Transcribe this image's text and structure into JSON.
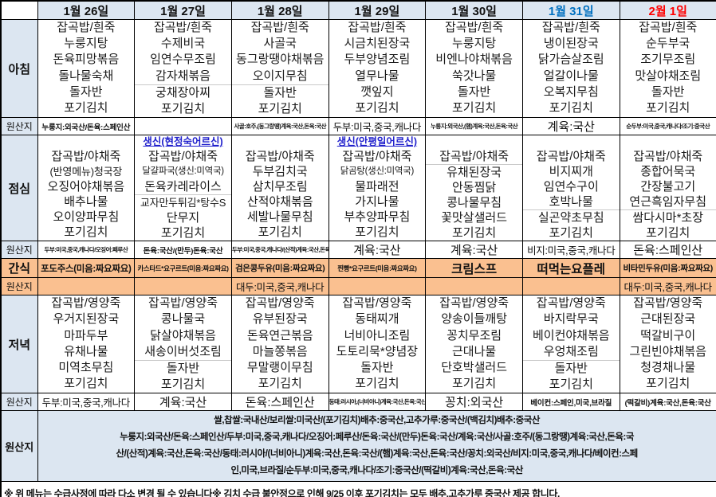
{
  "labels": {
    "breakfast": "아침",
    "lunch": "점심",
    "snack": "간식",
    "dinner": "저녁",
    "origin": "원산지"
  },
  "colors": {
    "header_bg": "#dce6f1",
    "snack_bg": "#fac090",
    "saturday": "#0070c0",
    "sunday": "#ff0000",
    "birthday": "#2020cc"
  },
  "dates": [
    {
      "label": "1월 26일",
      "color": "#101010"
    },
    {
      "label": "1월 27일",
      "color": "#101010"
    },
    {
      "label": "1월 28일",
      "color": "#101010"
    },
    {
      "label": "1월 29일",
      "color": "#101010"
    },
    {
      "label": "1월 30일",
      "color": "#101010"
    },
    {
      "label": "1월 31일",
      "color": "#0070c0"
    },
    {
      "label": "2월 1일",
      "color": "#ff0000"
    }
  ],
  "breakfast": {
    "columns": [
      {
        "items": [
          "잡곡밥/흰죽",
          "누룽지탕",
          "돈육피망볶음",
          "돌나물숙채",
          "돌자반",
          "포기김치"
        ],
        "divider_before": null,
        "origin": "누룽지:외국산/돈육:스페인산",
        "origin_size": "sm"
      },
      {
        "items": [
          "잡곡밥/흰죽",
          "수제비국",
          "임연수무조림",
          "감자채볶음",
          "궁채장아찌",
          "포기김치"
        ],
        "divider_before": 4,
        "origin": "",
        "origin_size": "md"
      },
      {
        "items": [
          "잡곡밥/흰죽",
          "사골국",
          "동그랑땡야채볶음",
          "오이지무침",
          "돌자반",
          "포기김치"
        ],
        "divider_before": 4,
        "origin": "사골:호주,(동그랑땡)계육:국산,돈육:국산",
        "origin_size": "xs"
      },
      {
        "items": [
          "잡곡밥/흰죽",
          "시금치된장국",
          "두부양념조림",
          "열무나물",
          "깻잎지",
          "포기김치"
        ],
        "divider_before": null,
        "origin": "두부:미국,중국,캐나다",
        "origin_size": "md"
      },
      {
        "items": [
          "잡곡밥/흰죽",
          "누룽지탕",
          "비엔나야채볶음",
          "쑥갓나물",
          "돌자반",
          "포기김치"
        ],
        "divider_before": null,
        "origin": "누룽지:외국산,(햄)계육:국산,돈육:국산",
        "origin_size": "xs"
      },
      {
        "items": [
          "잡곡밥/흰죽",
          "냉이된장국",
          "닭가슴살조림",
          "얼갈이나물",
          "오복지무침",
          "포기김치"
        ],
        "divider_before": null,
        "origin": "계육:국산",
        "origin_size": "lg"
      },
      {
        "items": [
          "잡곡밥/흰죽",
          "순두부국",
          "조기무조림",
          "맛살야채조림",
          "돌자반",
          "포기김치"
        ],
        "divider_before": null,
        "origin": "순두부:미국,중국,캐나다/조기:중국산",
        "origin_size": "xs"
      }
    ]
  },
  "lunch": {
    "columns": [
      {
        "special": "",
        "items": [
          "잡곡밥/야채죽",
          "(반영메뉴)청국장",
          "오징어야채볶음",
          "배추나물",
          "오이양파무침",
          "포기김치"
        ],
        "divider_before": null,
        "origin": "두부:미국,중국,캐나다/오징어:페루산",
        "origin_size": "xs"
      },
      {
        "special": "생신(현정숙어르신)",
        "items": [
          "잡곡밥/야채죽",
          "달걀파국(생신:미역국)",
          "돈육카레라이스",
          "교자만두튀김*탕수S",
          "단무지",
          "포기김치"
        ],
        "divider_before": 3,
        "origin": "돈육:국산/(만두)돈육:국산",
        "origin_size": "sm"
      },
      {
        "special": "",
        "items": [
          "잡곡밥/야채죽",
          "두부김치국",
          "삼치무조림",
          "산적야채볶음",
          "세발나물무침",
          "포기김치"
        ],
        "divider_before": null,
        "origin": "두부:미국,중국,캐나다/(산적)계육:국산,돈육:국산",
        "origin_size": "xs"
      },
      {
        "special": "생신(안평일어르신)",
        "items": [
          "잡곡밥/야채죽",
          "닭곰탕(생신:미역국)",
          "물파래전",
          "가지나물",
          "부추양파무침",
          "포기김치"
        ],
        "divider_before": null,
        "origin": "계육:국산",
        "origin_size": "lg"
      },
      {
        "special": "",
        "items": [
          "잡곡밥/야채죽",
          "유채된장국",
          "안동찜닭",
          "콩나물무침",
          "꽃맛살샐러드",
          "포기김치"
        ],
        "divider_before": 1,
        "origin": "계육:국산",
        "origin_size": "lg"
      },
      {
        "special": "",
        "items": [
          "잡곡밥/야채죽",
          "비지찌개",
          "임연수구이",
          "호박나물",
          "실곤약초무침",
          "포기김치"
        ],
        "divider_before": 4,
        "origin": "비지:미국,중국,캐나다",
        "origin_size": "md"
      },
      {
        "special": "",
        "items": [
          "잡곡밥/야채죽",
          "종합어묵국",
          "간장불고기",
          "연근흑임자무침",
          "쌈다시마*초장",
          "포기김치"
        ],
        "divider_before": 4,
        "origin": "돈육:스페인산",
        "origin_size": "lg"
      }
    ]
  },
  "snack": {
    "columns": [
      {
        "text": "포도주스(미음:짜요짜요)",
        "size": "md",
        "origin": "",
        "origin_size": "md"
      },
      {
        "text": "카스타드*요구르트(미음:짜요짜요)",
        "size": "xs",
        "origin": "",
        "origin_size": "md"
      },
      {
        "text": "검은콩두유(미음:짜요짜요)",
        "size": "sm",
        "origin": "대두:미국,중국,캐나다",
        "origin_size": "md"
      },
      {
        "text": "찐빵*요구르트(미음:짜요짜요)",
        "size": "xs",
        "origin": "",
        "origin_size": "md"
      },
      {
        "text": "크림스프",
        "size": "lg",
        "origin": "",
        "origin_size": "md"
      },
      {
        "text": "떠먹는요플레",
        "size": "lg",
        "origin": "",
        "origin_size": "md"
      },
      {
        "text": "비타민두유(미음:짜요짜요)",
        "size": "sm",
        "origin": "대두:미국,중국,캐나다",
        "origin_size": "md"
      }
    ]
  },
  "dinner": {
    "columns": [
      {
        "items": [
          "잡곡밥/영양죽",
          "우거지된장국",
          "마파두부",
          "유채나물",
          "미역초무침",
          "포기김치"
        ],
        "divider_before": null,
        "origin": "두부:미국,중국,캐나다",
        "origin_size": "md"
      },
      {
        "items": [
          "잡곡밥/영양죽",
          "콩나물국",
          "닭살야채볶음",
          "새송이버섯조림",
          "돌자반",
          "포기김치"
        ],
        "divider_before": 4,
        "origin": "계육:국산",
        "origin_size": "lg"
      },
      {
        "items": [
          "잡곡밥/영양죽",
          "유부된장국",
          "돈육연근볶음",
          "마늘쫑볶음",
          "무말랭이무침",
          "포기김치"
        ],
        "divider_before": null,
        "origin": "돈육:스페인산",
        "origin_size": "lg"
      },
      {
        "items": [
          "잡곡밥/영양죽",
          "동태찌개",
          "너비아니조림",
          "도토리묵*양념장",
          "돌자반",
          "포기김치"
        ],
        "divider_before": null,
        "origin": "동태:러시아,(너비아니)계육:국산,돈육:국산",
        "origin_size": "xs"
      },
      {
        "items": [
          "잡곡밥/영양죽",
          "양송이들깨탕",
          "꽁치무조림",
          "근대나물",
          "단호박샐러드",
          "포기김치"
        ],
        "divider_before": null,
        "origin": "꽁치:외국산",
        "origin_size": "lg"
      },
      {
        "items": [
          "잡곡밥/영양죽",
          "바지락무국",
          "베이컨야채볶음",
          "우엉채조림",
          "돌자반",
          "포기김치"
        ],
        "divider_before": 4,
        "origin": "베이컨:스페인,미국,브라질",
        "origin_size": "sm"
      },
      {
        "items": [
          "잡곡밥/영양죽",
          "근대된장국",
          "떡갈비구이",
          "그린빈야채볶음",
          "청경채나물",
          "포기김치"
        ],
        "divider_before": null,
        "origin": "(떡갈비)계육:국산,돈육:국산",
        "origin_size": "sm"
      }
    ]
  },
  "origin_summary": {
    "lines": [
      "쌀,찹쌀:국내산/보리쌀:미국산/(포기김치)배추:중국산,고추가루:중국산/(백김치)배추:중국산",
      "누룽지:외국산/돈육:스페인산/두부:미국,중국,캐나다/오징어:페루산/돈육:국산/(만두)돈육:국산/계육:국산/사골:호주/(동그랑땡)계육:국산,돈육:국",
      "산/(산적)계육:국산,돈육:국산/동태:러시아/(너비아니)계육:국산,돈육:국산/(햄)계육:국산,돈육:국산/꽁치:외국산/비지:미국,중국,캐나다/베이컨:스페",
      "인,미국,브라질/순두부:미국,중국,캐나다/조기:중국산/(떡갈비)계육:국산,돈육:국산"
    ]
  },
  "footer": {
    "note": "※ 위 메뉴는 수급사정에 따라 다소 변경 될 수 있습니다※  김치 수급 불안정으로 인해 9/25 이후 포기김치는 모두 배추,고추가루 중국산 제공 합니다."
  }
}
